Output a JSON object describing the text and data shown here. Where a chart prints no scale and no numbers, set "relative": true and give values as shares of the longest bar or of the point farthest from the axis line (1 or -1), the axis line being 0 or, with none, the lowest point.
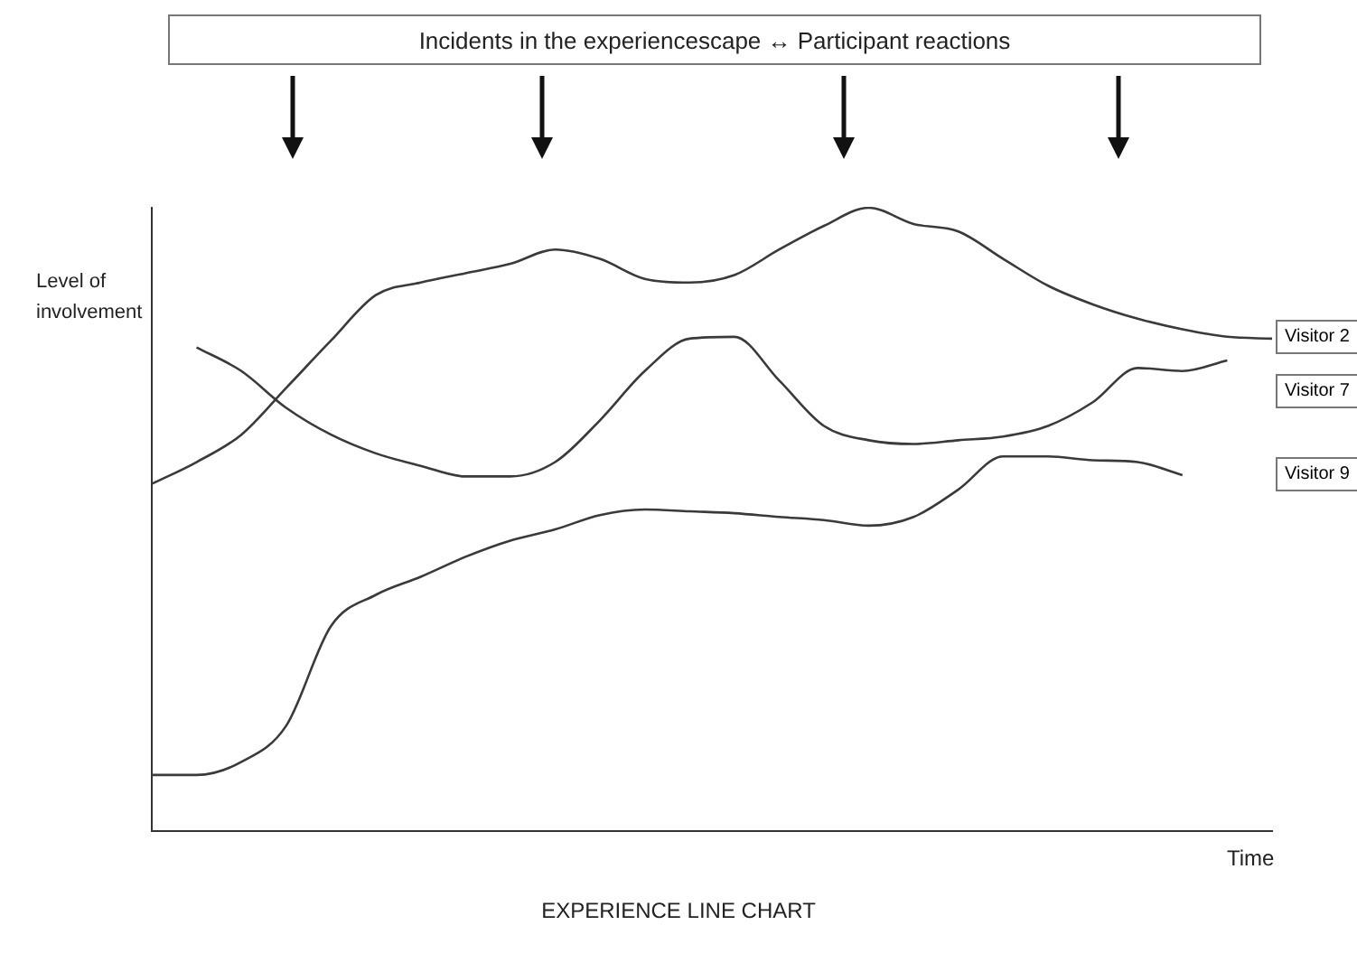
{
  "chart_data": {
    "type": "line",
    "relative": true,
    "xlabel": "Time",
    "ylabel": "Level of involvement",
    "annotations": [
      "Incidents in the experiencescape ↔ Participant reactions",
      "EXPERIENCE LINE CHART"
    ],
    "categories": [
      null,
      null,
      null,
      null,
      null,
      null,
      null,
      null,
      null,
      null,
      null,
      null,
      null,
      null,
      null,
      null,
      null,
      null,
      null,
      null,
      null,
      null,
      null,
      null,
      null,
      null
    ],
    "legend": false,
    "grid": false,
    "marker": "none",
    "line_style": "solid",
    "series": [
      {
        "name": "Visitor 2",
        "color": "#3a3a3a",
        "values": [
          0.557,
          0.592,
          0.636,
          0.711,
          0.787,
          0.86,
          0.88,
          0.895,
          0.91,
          0.933,
          0.918,
          0.886,
          0.88,
          0.892,
          0.933,
          0.971,
          1,
          0.974,
          0.962,
          0.918,
          0.875,
          0.845,
          0.822,
          0.805,
          0.793,
          0.79
        ]
      },
      {
        "name": "Visitor 7",
        "color": "#3a3a3a",
        "values": [
          null,
          0.776,
          0.738,
          0.679,
          0.636,
          0.606,
          0.586,
          0.569,
          0.569,
          0.592,
          0.659,
          0.738,
          0.79,
          0.793,
          0.723,
          0.65,
          0.627,
          0.621,
          0.627,
          0.633,
          0.65,
          0.688,
          0.743,
          0.738,
          0.755,
          null
        ]
      },
      {
        "name": "Visitor 9",
        "color": "#3a3a3a",
        "values": [
          0.09,
          0.09,
          0.111,
          0.169,
          0.329,
          0.379,
          0.408,
          0.44,
          0.466,
          0.484,
          0.507,
          0.516,
          0.513,
          0.51,
          0.504,
          0.499,
          0.49,
          0.504,
          0.548,
          0.601,
          0.601,
          0.595,
          0.592,
          0.571,
          null,
          null
        ]
      }
    ]
  }
}
